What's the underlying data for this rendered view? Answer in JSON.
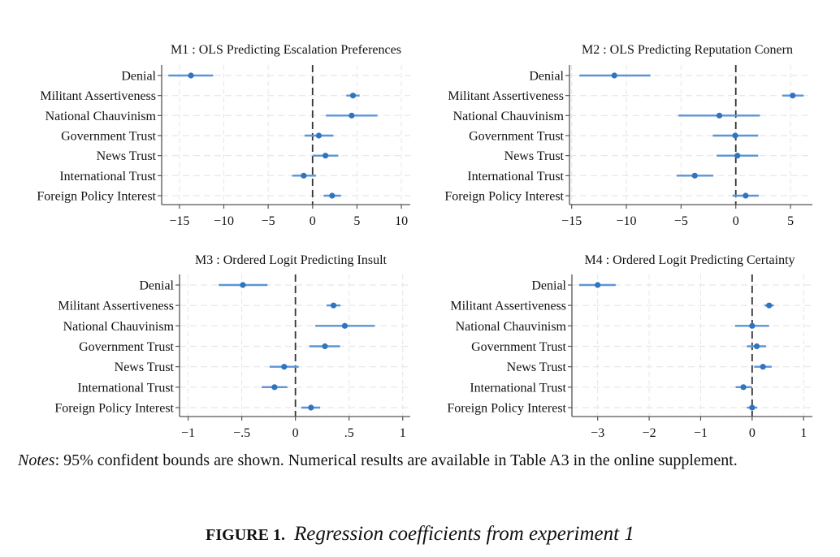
{
  "chart_data": [
    {
      "type": "scatter",
      "subtype": "coefficient-plot",
      "title": "M1 : OLS Predicting Escalation Preferences",
      "xlabel": "",
      "ylabel": "",
      "xlim": [
        -17,
        11
      ],
      "xticks": [
        -15,
        -10,
        -5,
        0,
        10,
        5
      ],
      "xtick_labels": [
        "−15",
        "−10",
        "−5",
        "0",
        "10",
        "5"
      ],
      "reference_line": 0,
      "grid": true,
      "categories": [
        "Denial",
        "Militant Assertiveness",
        "National Chauvinism",
        "Government Trust",
        "News Trust",
        "International Trust",
        "Foreign Policy Interest"
      ],
      "estimates": [
        -13.7,
        4.55,
        4.4,
        0.7,
        1.45,
        -1.0,
        2.2
      ],
      "ci_low": [
        -16.25,
        3.8,
        1.5,
        -0.9,
        0.0,
        -2.3,
        1.25
      ],
      "ci_high": [
        -11.2,
        5.3,
        7.3,
        2.35,
        2.9,
        0.4,
        3.2
      ]
    },
    {
      "type": "scatter",
      "subtype": "coefficient-plot",
      "title": "M2 : OLS Predicting Reputation Conern",
      "xlabel": "",
      "ylabel": "",
      "xlim": [
        -15.2,
        7.0
      ],
      "xticks": [
        -15,
        -10,
        -5,
        0,
        5
      ],
      "xtick_labels": [
        "−15",
        "−10",
        "−5",
        "0",
        "5"
      ],
      "reference_line": 0,
      "grid": true,
      "categories": [
        "Denial",
        "Militant Assertiveness",
        "National Chauvinism",
        "Government Trust",
        "News Trust",
        "International Trust",
        "Foreign Policy Interest"
      ],
      "estimates": [
        -11.1,
        5.2,
        -1.5,
        -0.05,
        0.15,
        -3.75,
        0.9
      ],
      "ci_low": [
        -14.3,
        4.25,
        -5.25,
        -2.1,
        -1.75,
        -5.4,
        -0.3
      ],
      "ci_high": [
        -7.8,
        6.2,
        2.2,
        2.05,
        2.05,
        -2.05,
        2.1
      ]
    },
    {
      "type": "scatter",
      "subtype": "coefficient-plot",
      "title": "M3 : Ordered Logit Predicting Insult",
      "xlabel": "",
      "ylabel": "",
      "xlim": [
        -1.08,
        1.07
      ],
      "xticks": [
        -1,
        -0.5,
        0,
        0.5,
        1
      ],
      "xtick_labels": [
        "−1",
        "−.5",
        "0",
        ".5",
        "1"
      ],
      "reference_line": 0,
      "grid": true,
      "categories": [
        "Denial",
        "Militant Assertiveness",
        "National Chauvinism",
        "Government Trust",
        "News Trust",
        "International Trust",
        "Foreign Policy Interest"
      ],
      "estimates": [
        -0.49,
        0.355,
        0.46,
        0.275,
        -0.105,
        -0.195,
        0.145
      ],
      "ci_low": [
        -0.715,
        0.29,
        0.185,
        0.13,
        -0.24,
        -0.315,
        0.055
      ],
      "ci_high": [
        -0.26,
        0.42,
        0.74,
        0.415,
        0.03,
        -0.075,
        0.23
      ]
    },
    {
      "type": "scatter",
      "subtype": "coefficient-plot",
      "title": "M4 : Ordered Logit Predicting Certainty",
      "xlabel": "",
      "ylabel": "",
      "xlim": [
        -3.5,
        1.17
      ],
      "xticks": [
        -3,
        -2,
        -1,
        0,
        1
      ],
      "xtick_labels": [
        "−3",
        "−2",
        "−1",
        "0",
        "1"
      ],
      "reference_line": 0,
      "grid": true,
      "categories": [
        "Denial",
        "Militant Assertiveness",
        "National Chauvinism",
        "Government Trust",
        "News Trust",
        "International Trust",
        "Foreign Policy Interest"
      ],
      "estimates": [
        -3.0,
        0.33,
        0.0,
        0.09,
        0.21,
        -0.17,
        0.0
      ],
      "ci_low": [
        -3.36,
        0.24,
        -0.33,
        -0.1,
        0.04,
        -0.32,
        -0.1
      ],
      "ci_high": [
        -2.65,
        0.42,
        0.33,
        0.27,
        0.38,
        0.0,
        0.1
      ]
    }
  ],
  "colors": {
    "point": "#2f74c0",
    "ci_line": "#5a95d6",
    "reference_line": "#333333",
    "grid": "#e6e6e6",
    "axis": "#555555"
  },
  "notes": {
    "label": "Notes",
    "text": ": 95% confident bounds are shown. Numerical results are available in Table A3 in the online supplement."
  },
  "caption": {
    "label": "FIGURE 1.",
    "text": "Regression coefficients from experiment 1"
  }
}
